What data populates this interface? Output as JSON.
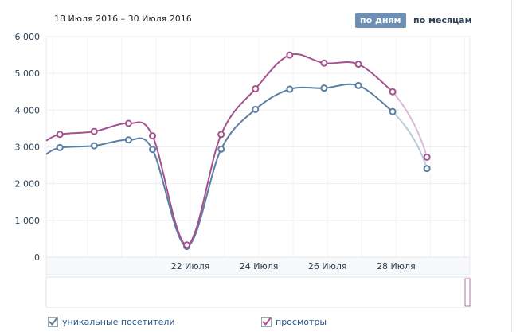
{
  "header": {
    "date_range": "18 Июля 2016 – 30 Июля 2016",
    "by_days": "по дням",
    "by_months": "по месяцам"
  },
  "legend": {
    "unique": "уникальные посетители",
    "views": "просмотры"
  },
  "chart_data": {
    "type": "line",
    "title": "",
    "xlabel": "",
    "ylabel": "",
    "x": [
      18,
      19,
      20,
      21,
      22,
      23,
      24,
      25,
      26,
      27,
      28,
      29,
      30
    ],
    "x_tick_labels": [
      "22 Июля",
      "24 Июля",
      "26 Июля",
      "28 Июля"
    ],
    "x_tick_days": [
      22,
      24,
      26,
      28
    ],
    "y_tick_labels": [
      "0",
      "1 000",
      "2 000",
      "3 000",
      "4 000",
      "5 000",
      "6 000"
    ],
    "ylim": [
      0,
      6000
    ],
    "xlim": [
      17.8,
      30.15
    ],
    "grid": true,
    "series": [
      {
        "name": "уникальные посетители",
        "color": "#5b7ea3",
        "values": [
          2980,
          3030,
          3190,
          2930,
          290,
          2940,
          4020,
          4570,
          4600,
          4670,
          3960,
          2410
        ],
        "x": [
          18.2,
          19.2,
          20.2,
          20.9,
          21.9,
          22.9,
          23.9,
          24.9,
          25.9,
          26.9,
          27.9,
          28.9
        ]
      },
      {
        "name": "просмотры",
        "color": "#a6528f",
        "values": [
          3340,
          3420,
          3640,
          3300,
          330,
          3340,
          4580,
          5500,
          5280,
          5250,
          4500,
          2720
        ],
        "x": [
          18.2,
          19.2,
          20.2,
          20.9,
          21.9,
          22.9,
          23.9,
          24.9,
          25.9,
          26.9,
          27.9,
          28.9
        ]
      }
    ]
  }
}
